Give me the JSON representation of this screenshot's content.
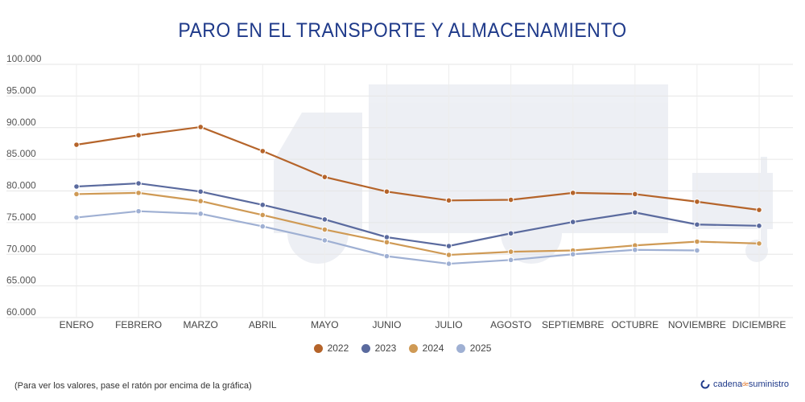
{
  "title": "PARO EN EL TRANSPORTE Y ALMACENAMIENTO",
  "footnote": "(Para ver los valores, pase el ratón por encima de la gráfica)",
  "brand": {
    "name_part1": "cadena",
    "name_part2": "de",
    "name_part3": "suministro",
    "icon": "brand-logo-icon",
    "color": "#1f3a8a"
  },
  "chart_data": {
    "type": "line",
    "title": "PARO EN EL TRANSPORTE Y ALMACENAMIENTO",
    "xlabel": "",
    "ylabel": "",
    "categories": [
      "ENERO",
      "FEBRERO",
      "MARZO",
      "ABRIL",
      "MAYO",
      "JUNIO",
      "JULIO",
      "AGOSTO",
      "SEPTIEMBRE",
      "OCTUBRE",
      "NOVIEMBRE",
      "DICIEMBRE"
    ],
    "ylim": [
      60000,
      100000
    ],
    "yticks": [
      60000,
      65000,
      70000,
      75000,
      80000,
      85000,
      90000,
      95000,
      100000
    ],
    "ytick_labels": [
      "60.000",
      "65.000",
      "70.000",
      "75.000",
      "80.000",
      "85.000",
      "90.000",
      "95.000",
      "100.000"
    ],
    "grid": true,
    "legend_position": "bottom",
    "series": [
      {
        "name": "2022",
        "color": "#b5642a",
        "values": [
          87300,
          88800,
          90100,
          86300,
          82200,
          79900,
          78500,
          78600,
          79700,
          79500,
          78300,
          77000
        ]
      },
      {
        "name": "2023",
        "color": "#5a6a9e",
        "values": [
          80700,
          81200,
          79900,
          77800,
          75500,
          72700,
          71300,
          73300,
          75100,
          76600,
          74700,
          74500
        ]
      },
      {
        "name": "2024",
        "color": "#cf9a55",
        "values": [
          79500,
          79700,
          78400,
          76200,
          73900,
          71900,
          69900,
          70400,
          70600,
          71400,
          72000,
          71700
        ]
      },
      {
        "name": "2025",
        "color": "#9fb0d3",
        "values": [
          75800,
          76800,
          76400,
          74400,
          72200,
          69700,
          68500,
          69100,
          70000,
          70700,
          70600,
          null
        ]
      }
    ]
  }
}
